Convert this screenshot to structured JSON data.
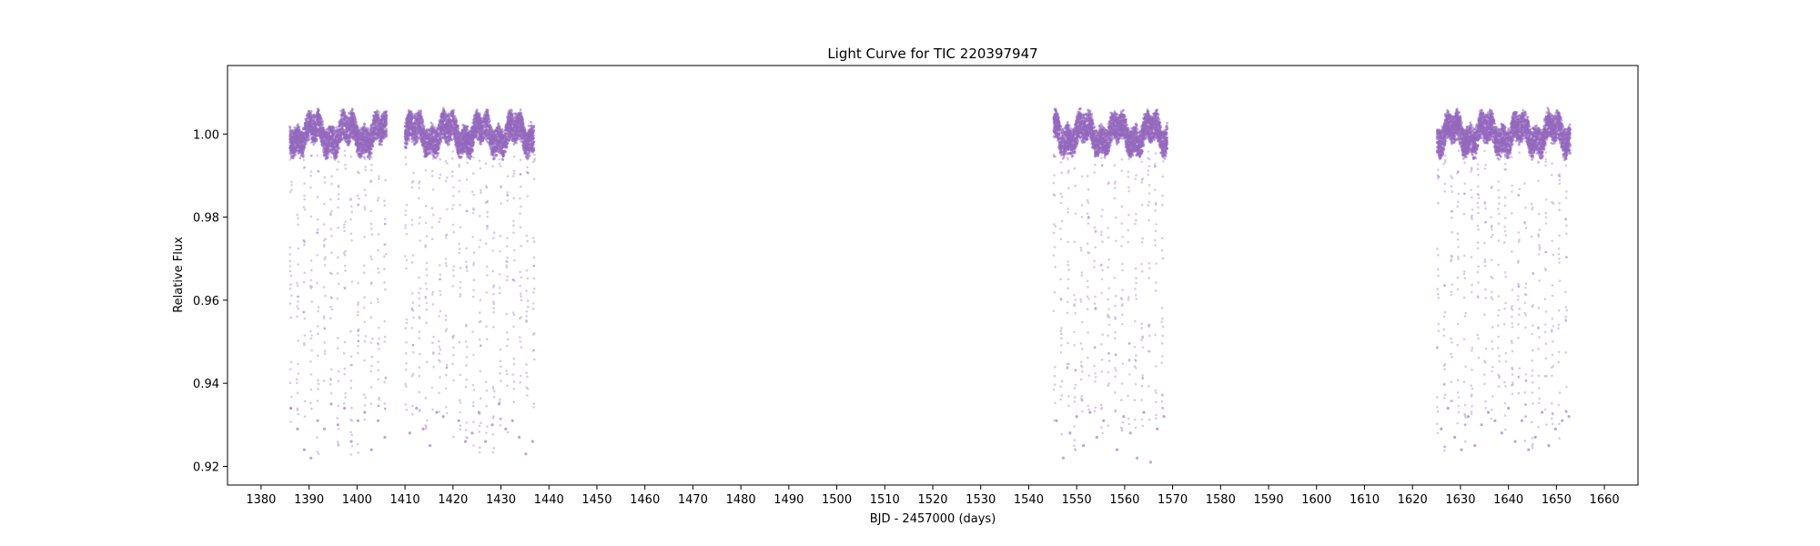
{
  "chart_data": {
    "type": "scatter",
    "title": "Light Curve for TIC 220397947",
    "xlabel": "BJD - 2457000 (days)",
    "ylabel": "Relative Flux",
    "xlim": [
      1373,
      1667
    ],
    "ylim": [
      0.9155,
      1.0165
    ],
    "x_ticks": [
      1380,
      1390,
      1400,
      1410,
      1420,
      1430,
      1440,
      1450,
      1460,
      1470,
      1480,
      1490,
      1500,
      1510,
      1520,
      1530,
      1540,
      1550,
      1560,
      1570,
      1580,
      1590,
      1600,
      1610,
      1620,
      1630,
      1640,
      1650,
      1660
    ],
    "y_ticks": [
      0.92,
      0.94,
      0.96,
      0.98,
      1.0
    ],
    "y_tick_labels": [
      "0.92",
      "0.94",
      "0.96",
      "0.98",
      "1.00"
    ],
    "grid": false,
    "legend": "none",
    "point_color": "#9467bd",
    "series": [
      {
        "segments": [
          {
            "x_start": 1386.0,
            "x_end": 1406.2
          },
          {
            "x_start": 1410.0,
            "x_end": 1436.9
          },
          {
            "x_start": 1545.2,
            "x_end": 1568.9
          },
          {
            "x_start": 1625.1,
            "x_end": 1652.9
          }
        ],
        "baseline_flux": 1.0,
        "scatter_band": [
          0.996,
          1.004
        ],
        "eclipse_period_days": 1.405,
        "eclipse_min_flux": 0.922,
        "data_gaps": [
          1396.4,
          1423.3,
          1556.7,
          1639.0
        ],
        "points": [
          [
            1386.2,
            0.934
          ],
          [
            1387.6,
            0.929
          ],
          [
            1389.0,
            0.924
          ],
          [
            1390.4,
            0.922
          ],
          [
            1391.8,
            0.931
          ],
          [
            1393.2,
            0.929
          ],
          [
            1394.6,
            0.935
          ],
          [
            1396.0,
            0.93
          ],
          [
            1397.4,
            0.934
          ],
          [
            1398.8,
            0.926
          ],
          [
            1400.2,
            0.931
          ],
          [
            1401.6,
            0.933
          ],
          [
            1403.0,
            0.924
          ],
          [
            1404.4,
            0.931
          ],
          [
            1405.8,
            0.927
          ],
          [
            1411.0,
            0.928
          ],
          [
            1412.4,
            0.934
          ],
          [
            1413.8,
            0.929
          ],
          [
            1415.2,
            0.925
          ],
          [
            1416.6,
            0.933
          ],
          [
            1418.0,
            0.932
          ],
          [
            1421.2,
            0.931
          ],
          [
            1422.6,
            0.926
          ],
          [
            1424.0,
            0.928
          ],
          [
            1425.4,
            0.933
          ],
          [
            1426.8,
            0.926
          ],
          [
            1428.2,
            0.93
          ],
          [
            1429.6,
            0.935
          ],
          [
            1431.0,
            0.929
          ],
          [
            1432.4,
            0.931
          ],
          [
            1433.8,
            0.927
          ],
          [
            1435.2,
            0.923
          ],
          [
            1436.6,
            0.926
          ],
          [
            1545.8,
            0.931
          ],
          [
            1547.2,
            0.922
          ],
          [
            1548.6,
            0.928
          ],
          [
            1550.0,
            0.932
          ],
          [
            1551.4,
            0.925
          ],
          [
            1552.8,
            0.933
          ],
          [
            1554.2,
            0.927
          ],
          [
            1555.6,
            0.931
          ],
          [
            1558.4,
            0.924
          ],
          [
            1559.8,
            0.932
          ],
          [
            1561.2,
            0.928
          ],
          [
            1562.6,
            0.922
          ],
          [
            1564.0,
            0.933
          ],
          [
            1565.4,
            0.921
          ],
          [
            1566.8,
            0.929
          ],
          [
            1568.2,
            0.932
          ],
          [
            1626.0,
            0.929
          ],
          [
            1627.4,
            0.934
          ],
          [
            1628.8,
            0.927
          ],
          [
            1630.2,
            0.924
          ],
          [
            1631.6,
            0.932
          ],
          [
            1633.0,
            0.925
          ],
          [
            1634.4,
            0.93
          ],
          [
            1635.8,
            0.933
          ],
          [
            1637.2,
            0.931
          ],
          [
            1638.6,
            0.928
          ],
          [
            1640.0,
            0.934
          ],
          [
            1641.4,
            0.926
          ],
          [
            1642.8,
            0.931
          ],
          [
            1644.2,
            0.924
          ],
          [
            1645.6,
            0.927
          ],
          [
            1647.0,
            0.933
          ],
          [
            1648.4,
            0.925
          ],
          [
            1649.8,
            0.929
          ],
          [
            1651.2,
            0.931
          ],
          [
            1652.6,
            0.932
          ]
        ]
      }
    ]
  }
}
